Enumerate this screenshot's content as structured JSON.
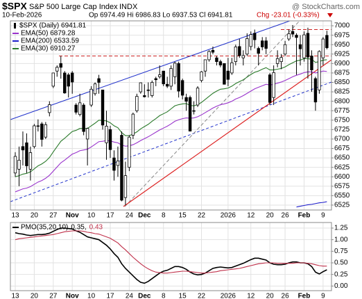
{
  "chart_data": [
    {
      "type": "candlestick",
      "symbol": "$SPX",
      "title": "S&P 500 Large Cap Index",
      "exchange": "INDX",
      "watermark": "@ StockCharts.com",
      "date": "10-Feb-2026",
      "quote": "Op 6974.49 Hi 6986.83 Lo 6937.53 Cl 6941.81",
      "change": "Chg -23.01 (-0.33%)",
      "change_color": "#cc0000",
      "price_label": "$SPX (Daily) 6941.81",
      "categories": [
        "13",
        null,
        null,
        null,
        null,
        "20",
        null,
        null,
        null,
        null,
        "27",
        null,
        null,
        null,
        null,
        "Nov",
        null,
        null,
        null,
        null,
        "10",
        null,
        null,
        null,
        null,
        "17",
        null,
        null,
        null,
        null,
        "24",
        null,
        null,
        null,
        "Dec",
        null,
        null,
        null,
        null,
        "8",
        null,
        null,
        null,
        null,
        "15",
        null,
        null,
        null,
        null,
        "22",
        null,
        null,
        null,
        null,
        null,
        null,
        "2026",
        null,
        null,
        null,
        null,
        null,
        "12",
        null,
        null,
        null,
        null,
        "20",
        null,
        null,
        null,
        "26",
        null,
        null,
        null,
        null,
        "Feb",
        null,
        null,
        null,
        null,
        "9",
        null
      ],
      "open": [
        6610,
        6620,
        6680,
        6690,
        6620,
        6680,
        6735,
        6740,
        6705,
        6770,
        6840,
        6880,
        6900,
        6875,
        6870,
        6875,
        6790,
        6765,
        6790,
        6700,
        6790,
        6820,
        6860,
        6830,
        6690,
        6725,
        6650,
        6630,
        6710,
        6545,
        6625,
        6710,
        6775,
        6825,
        6815,
        6830,
        6815,
        6860,
        6865,
        6880,
        6845,
        6840,
        6865,
        6900,
        6855,
        6810,
        6810,
        6775,
        6790,
        6855,
        6880,
        6910,
        6935,
        6915,
        6905,
        6900,
        6880,
        6875,
        6905,
        6945,
        6915,
        6925,
        6945,
        6980,
        6940,
        6960,
        6960,
        6870,
        6810,
        6900,
        6905,
        6925,
        6965,
        6985,
        6975,
        6950,
        6915,
        6980,
        6920,
        6860,
        6830,
        6915,
        6974.49
      ],
      "high": [
        6665,
        6680,
        6720,
        6715,
        6680,
        6740,
        6752,
        6745,
        6745,
        6800,
        6875,
        6895,
        6920,
        6880,
        6875,
        6880,
        6795,
        6820,
        6795,
        6730,
        6840,
        6850,
        6870,
        6830,
        6775,
        6735,
        6670,
        6680,
        6720,
        6640,
        6710,
        6770,
        6820,
        6850,
        6845,
        6850,
        6855,
        6865,
        6895,
        6880,
        6865,
        6895,
        6905,
        6905,
        6860,
        6820,
        6815,
        6800,
        6840,
        6880,
        6910,
        6935,
        6945,
        6920,
        6910,
        6900,
        6915,
        6915,
        6950,
        6965,
        6935,
        6980,
        6985,
        6990,
        6945,
        6970,
        6970,
        6875,
        6895,
        6935,
        6925,
        6960,
        6990,
        7002,
        6980,
        6975,
        6985,
        6995,
        6935,
        6865,
        6935,
        6970,
        6986.83
      ],
      "low": [
        6600,
        6575,
        6630,
        6610,
        6590,
        6675,
        6720,
        6680,
        6700,
        6760,
        6835,
        6865,
        6860,
        6820,
        6810,
        6820,
        6765,
        6760,
        6710,
        6630,
        6785,
        6815,
        6820,
        6725,
        6645,
        6650,
        6590,
        6600,
        6535,
        6525,
        6615,
        6700,
        6770,
        6820,
        6810,
        6810,
        6810,
        6840,
        6860,
        6840,
        6835,
        6830,
        6845,
        6810,
        6805,
        6775,
        6720,
        6765,
        6785,
        6850,
        6865,
        6905,
        6925,
        6895,
        6890,
        6845,
        6840,
        6870,
        6895,
        6915,
        6895,
        6920,
        6935,
        6940,
        6895,
        6935,
        6925,
        6790,
        6790,
        6890,
        6885,
        6920,
        6960,
        6970,
        6870,
        6895,
        6905,
        6860,
        6825,
        6775,
        6820,
        6895,
        6937.53
      ],
      "close": [
        6654,
        6644,
        6671,
        6629,
        6664,
        6735,
        6735,
        6699,
        6738,
        6791,
        6875,
        6890,
        6890,
        6822,
        6840,
        6851,
        6771,
        6796,
        6720,
        6728,
        6832,
        6846,
        6850,
        6737,
        6734,
        6672,
        6617,
        6642,
        6538,
        6603,
        6705,
        6766,
        6813,
        6849,
        6812,
        6829,
        6850,
        6857,
        6870,
        6846,
        6840,
        6887,
        6901,
        6827,
        6816,
        6800,
        6721,
        6775,
        6835,
        6878,
        6910,
        6932,
        6930,
        6905,
        6896,
        6845,
        6858,
        6902,
        6944,
        6921,
        6921,
        6966,
        6977,
        6963,
        6927,
        6944,
        6940,
        6797,
        6876,
        6913,
        6916,
        6950,
        6979,
        6978,
        6969,
        6939,
        6976,
        6917,
        6883,
        6798,
        6932,
        6965,
        6941.81
      ],
      "series": [
        {
          "name": "EMA(50) 6879.28",
          "color": "#9933cc",
          "values": [
            6560,
            6564,
            6568,
            6570,
            6574,
            6580,
            6586,
            6590,
            6596,
            6604,
            6615,
            6626,
            6637,
            6644,
            6652,
            6660,
            6664,
            6669,
            6671,
            6673,
            6679,
            6686,
            6693,
            6694,
            6696,
            6695,
            6692,
            6690,
            6684,
            6681,
            6682,
            6685,
            6690,
            6696,
            6701,
            6706,
            6712,
            6718,
            6724,
            6729,
            6734,
            6740,
            6747,
            6751,
            6754,
            6756,
            6755,
            6756,
            6759,
            6764,
            6770,
            6776,
            6782,
            6787,
            6791,
            6793,
            6796,
            6800,
            6806,
            6810,
            6815,
            6821,
            6827,
            6833,
            6837,
            6841,
            6845,
            6843,
            6845,
            6848,
            6851,
            6855,
            6860,
            6865,
            6869,
            6872,
            6876,
            6878,
            6878,
            6875,
            6877,
            6880,
            6879
          ]
        },
        {
          "name": "EMA(200) 6533.59",
          "color": "#1f1fcc",
          "values": [
            null,
            null,
            null,
            null,
            null,
            null,
            null,
            null,
            null,
            null,
            null,
            null,
            null,
            null,
            null,
            null,
            null,
            null,
            null,
            null,
            null,
            null,
            null,
            null,
            null,
            null,
            null,
            null,
            null,
            null,
            null,
            null,
            null,
            null,
            null,
            null,
            null,
            null,
            null,
            null,
            null,
            null,
            null,
            null,
            null,
            null,
            null,
            null,
            null,
            null,
            null,
            null,
            null,
            null,
            null,
            null,
            null,
            null,
            null,
            null,
            null,
            null,
            null,
            null,
            null,
            null,
            null,
            null,
            null,
            null,
            null,
            null,
            null,
            null,
            6520,
            6522,
            6524,
            6526,
            6527,
            6529,
            6531,
            6532,
            6534
          ]
        },
        {
          "name": "EMA(30) 6910.27",
          "color": "#2a7a2a",
          "values": [
            6600,
            6603,
            6607,
            6609,
            6613,
            6621,
            6629,
            6634,
            6641,
            6651,
            6666,
            6680,
            6694,
            6702,
            6711,
            6720,
            6723,
            6728,
            6728,
            6728,
            6735,
            6742,
            6750,
            6749,
            6748,
            6743,
            6735,
            6730,
            6717,
            6709,
            6709,
            6713,
            6719,
            6727,
            6733,
            6739,
            6747,
            6754,
            6762,
            6767,
            6772,
            6780,
            6788,
            6791,
            6793,
            6794,
            6789,
            6788,
            6791,
            6797,
            6805,
            6813,
            6821,
            6827,
            6832,
            6833,
            6835,
            6840,
            6847,
            6852,
            6857,
            6864,
            6871,
            6877,
            6880,
            6885,
            6889,
            6883,
            6883,
            6885,
            6887,
            6891,
            6897,
            6902,
            6907,
            6909,
            6913,
            6913,
            6911,
            6903,
            6905,
            6909,
            6910
          ]
        }
      ],
      "levels": [
        6990,
        6920
      ],
      "level_color": "#cc2222",
      "ylim": [
        6512,
        7013
      ],
      "yticks": [
        6525,
        6550,
        6575,
        6600,
        6625,
        6650,
        6675,
        6700,
        6725,
        6750,
        6775,
        6800,
        6825,
        6850,
        6875,
        6900,
        6925,
        6950,
        6975,
        7000
      ],
      "grid": true
    },
    {
      "type": "line",
      "label": "PMO(35,20,10)",
      "series": [
        {
          "name": "0.35,",
          "color": "#000000",
          "values": [
            1.15,
            1.13,
            1.12,
            1.1,
            1.09,
            1.1,
            1.11,
            1.11,
            1.12,
            1.14,
            1.18,
            1.22,
            1.25,
            1.25,
            1.24,
            1.23,
            1.19,
            1.16,
            1.11,
            1.06,
            1.04,
            1.02,
            1.0,
            0.94,
            0.88,
            0.8,
            0.7,
            0.62,
            0.48,
            0.38,
            0.3,
            0.22,
            0.14,
            0.08,
            0.06,
            0.1,
            0.16,
            0.22,
            0.28,
            0.32,
            0.34,
            0.38,
            0.42,
            0.42,
            0.4,
            0.36,
            0.3,
            0.26,
            0.24,
            0.25,
            0.28,
            0.33,
            0.38,
            0.4,
            0.41,
            0.4,
            0.39,
            0.4,
            0.43,
            0.46,
            0.49,
            0.53,
            0.57,
            0.6,
            0.6,
            0.58,
            0.56,
            0.5,
            0.47,
            0.46,
            0.46,
            0.47,
            0.5,
            0.52,
            0.52,
            0.5,
            0.5,
            0.48,
            0.42,
            0.3,
            0.26,
            0.31,
            0.35
          ]
        },
        {
          "name": "0.43",
          "color": "#c0304a",
          "values": [
            1.0,
            1.02,
            1.03,
            1.04,
            1.05,
            1.06,
            1.07,
            1.08,
            1.09,
            1.1,
            1.11,
            1.13,
            1.15,
            1.17,
            1.18,
            1.19,
            1.19,
            1.19,
            1.18,
            1.16,
            1.15,
            1.13,
            1.12,
            1.09,
            1.06,
            1.03,
            0.98,
            0.93,
            0.85,
            0.78,
            0.7,
            0.62,
            0.55,
            0.48,
            0.42,
            0.37,
            0.33,
            0.3,
            0.29,
            0.28,
            0.28,
            0.29,
            0.3,
            0.31,
            0.32,
            0.32,
            0.31,
            0.3,
            0.29,
            0.28,
            0.28,
            0.29,
            0.3,
            0.31,
            0.33,
            0.34,
            0.35,
            0.36,
            0.37,
            0.38,
            0.4,
            0.42,
            0.44,
            0.46,
            0.48,
            0.49,
            0.5,
            0.5,
            0.5,
            0.49,
            0.49,
            0.49,
            0.49,
            0.49,
            0.5,
            0.5,
            0.5,
            0.49,
            0.48,
            0.46,
            0.44,
            0.43,
            0.43
          ]
        }
      ],
      "ylim": [
        -0.1,
        1.37
      ],
      "yticks": [
        {
          "value": 0,
          "label": "0.00"
        },
        {
          "value": 0.25,
          "label": "0.25"
        },
        {
          "value": 0.5,
          "label": "0.50"
        },
        {
          "value": 0.75,
          "label": "0.75"
        },
        {
          "value": 1,
          "label": "1.00"
        },
        {
          "value": 1.25,
          "label": "1.25"
        }
      ],
      "grid": true
    }
  ]
}
